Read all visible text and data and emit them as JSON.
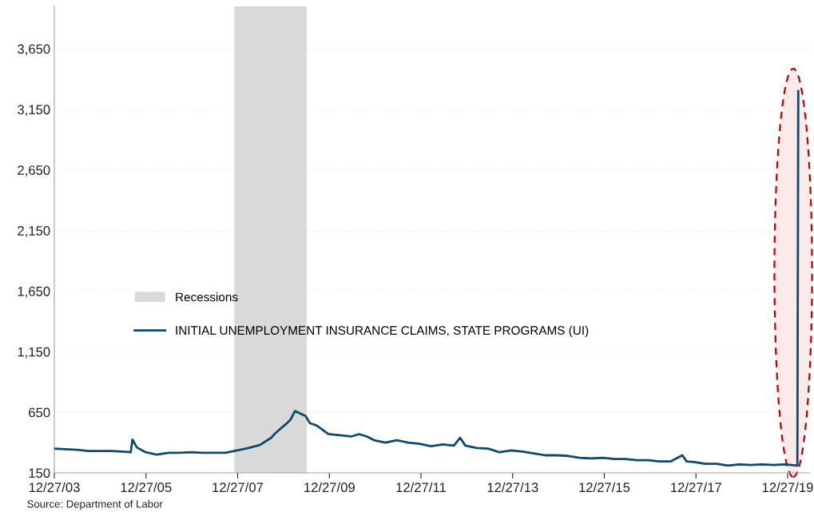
{
  "chart_data": {
    "type": "line",
    "x": [
      "2003-12-27",
      "2004-03-27",
      "2004-06-26",
      "2004-09-25",
      "2004-12-25",
      "2005-03-26",
      "2005-06-25",
      "2005-08-27",
      "2005-09-10",
      "2005-10-15",
      "2005-12-24",
      "2006-03-25",
      "2006-06-24",
      "2006-09-23",
      "2006-12-23",
      "2007-03-24",
      "2007-06-23",
      "2007-09-22",
      "2007-12-22",
      "2008-03-22",
      "2008-06-21",
      "2008-09-20",
      "2008-10-25",
      "2008-12-20",
      "2009-01-24",
      "2009-02-21",
      "2009-03-28",
      "2009-06-20",
      "2009-07-25",
      "2009-09-19",
      "2009-12-19",
      "2010-03-20",
      "2010-06-19",
      "2010-08-21",
      "2010-10-23",
      "2010-12-18",
      "2011-03-19",
      "2011-06-18",
      "2011-09-17",
      "2011-12-17",
      "2012-03-17",
      "2012-06-16",
      "2012-09-15",
      "2012-11-03",
      "2012-12-15",
      "2013-03-16",
      "2013-06-15",
      "2013-09-14",
      "2013-12-14",
      "2014-03-15",
      "2014-06-14",
      "2014-09-13",
      "2014-12-13",
      "2015-03-14",
      "2015-06-13",
      "2015-09-12",
      "2015-12-12",
      "2016-03-12",
      "2016-06-11",
      "2016-09-10",
      "2016-12-10",
      "2017-03-11",
      "2017-06-10",
      "2017-09-09",
      "2017-10-14",
      "2017-12-09",
      "2018-03-10",
      "2018-06-09",
      "2018-09-08",
      "2018-12-08",
      "2019-03-09",
      "2019-06-08",
      "2019-09-07",
      "2019-12-07",
      "2020-03-14",
      "2020-03-21"
    ],
    "series": [
      {
        "name": "INITIAL UNEMPLOYMENT INSURANCE CLAIMS, STATE PROGRAMS (UI)",
        "color": "#0d4a6e",
        "values": [
          350,
          345,
          340,
          330,
          330,
          330,
          325,
          320,
          425,
          360,
          320,
          300,
          315,
          315,
          320,
          315,
          315,
          315,
          335,
          355,
          380,
          440,
          480,
          530,
          560,
          590,
          660,
          620,
          560,
          540,
          470,
          460,
          450,
          470,
          450,
          420,
          400,
          420,
          400,
          390,
          370,
          385,
          375,
          440,
          375,
          355,
          350,
          320,
          335,
          325,
          310,
          295,
          295,
          290,
          275,
          270,
          275,
          265,
          265,
          255,
          255,
          245,
          245,
          295,
          245,
          240,
          225,
          225,
          210,
          220,
          215,
          220,
          215,
          220,
          210,
          3300
        ]
      }
    ],
    "ylim": [
      150,
      4000
    ],
    "yticks": [
      150,
      {
        "value": 650,
        "label": "650"
      },
      {
        "value": 1150,
        "label": "1,150"
      },
      {
        "value": 1650,
        "label": "1,650"
      },
      {
        "value": 2150,
        "label": "2,150"
      },
      {
        "value": 2650,
        "label": "2,650"
      },
      {
        "value": 3150,
        "label": "3,150"
      },
      {
        "value": 3650,
        "label": "3,650"
      }
    ],
    "xlim": [
      "2003-12-27",
      "2020-06-20"
    ],
    "xticks": [
      {
        "value": "2003-12-27",
        "label": "12/27/03"
      },
      {
        "value": "2005-12-27",
        "label": "12/27/05"
      },
      {
        "value": "2007-12-27",
        "label": "12/27/07"
      },
      {
        "value": "2009-12-27",
        "label": "12/27/09"
      },
      {
        "value": "2011-12-27",
        "label": "12/27/11"
      },
      {
        "value": "2013-12-27",
        "label": "12/27/13"
      },
      {
        "value": "2015-12-27",
        "label": "12/27/15"
      },
      {
        "value": "2017-12-27",
        "label": "12/27/17"
      },
      {
        "value": "2019-12-27",
        "label": "12/27/19"
      }
    ],
    "bands": [
      {
        "axis": "x",
        "from": "2007-12-01",
        "to": "2009-06-30",
        "label": "Recessions",
        "color": "#d9d9d9"
      }
    ],
    "grid": "y",
    "legend": "left",
    "annotations": [
      "Source: Department of Labor"
    ]
  }
}
